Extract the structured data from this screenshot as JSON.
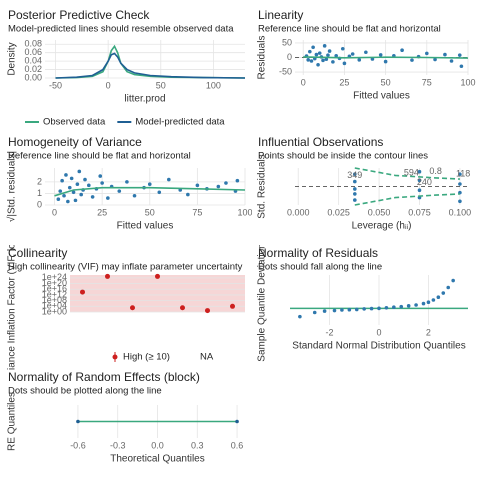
{
  "chart_data": [
    {
      "type": "line",
      "title": "Posterior Predictive Check",
      "subtitle": "Model-predicted lines should resemble observed data",
      "xlabel": "litter.prod",
      "ylabel": "Density",
      "xlim": [
        -60,
        130
      ],
      "ylim": [
        0,
        0.09
      ],
      "xticks": [
        -50,
        0,
        50,
        100
      ],
      "yticks": [
        {
          "value": 0,
          "label": "0.00"
        },
        {
          "value": 0.02,
          "label": "0.02"
        },
        {
          "value": 0.04,
          "label": "0.04"
        },
        {
          "value": 0.06,
          "label": "0.06"
        },
        {
          "value": 0.08,
          "label": "0.08"
        }
      ],
      "legend": "bottom",
      "series": [
        {
          "name": "Observed data",
          "color": "#3aa87f",
          "x": [
            -50,
            -30,
            -15,
            -5,
            0,
            3,
            6,
            9,
            12,
            18,
            25,
            40,
            60,
            90,
            130
          ],
          "values": [
            0,
            0.001,
            0.004,
            0.015,
            0.04,
            0.065,
            0.075,
            0.06,
            0.035,
            0.015,
            0.008,
            0.004,
            0.002,
            0.001,
            0
          ]
        },
        {
          "name": "Model-predicted data",
          "color": "#1f5f93",
          "x": [
            -50,
            -30,
            -15,
            -5,
            0,
            3,
            6,
            9,
            12,
            18,
            25,
            40,
            60,
            90,
            130
          ],
          "values": [
            0,
            0.002,
            0.006,
            0.02,
            0.04,
            0.055,
            0.058,
            0.05,
            0.035,
            0.02,
            0.012,
            0.006,
            0.003,
            0.001,
            0
          ]
        }
      ]
    },
    {
      "type": "scatter",
      "title": "Linearity",
      "subtitle": "Reference line should be flat and horizontal",
      "xlabel": "Fitted values",
      "ylabel": "Residuals",
      "xlim": [
        -5,
        100
      ],
      "ylim": [
        -60,
        60
      ],
      "xticks": [
        0,
        25,
        50,
        75,
        100
      ],
      "yticks": [
        -50,
        0,
        50
      ],
      "reference_line": 0,
      "series": [
        {
          "color": "#2f78ad",
          "x": [
            2,
            3,
            4,
            5,
            6,
            7,
            8,
            9,
            10,
            11,
            12,
            13,
            14,
            15,
            16,
            18,
            20,
            22,
            24,
            25,
            28,
            30,
            34,
            38,
            42,
            47,
            50,
            55,
            60,
            66,
            70,
            75,
            80,
            86,
            90,
            95,
            96
          ],
          "values": [
            5,
            -8,
            20,
            -12,
            35,
            -4,
            10,
            -25,
            15,
            2,
            -10,
            40,
            -6,
            8,
            22,
            -15,
            6,
            -3,
            30,
            -20,
            4,
            12,
            -8,
            18,
            -5,
            9,
            -14,
            6,
            25,
            -9,
            3,
            14,
            -7,
            10,
            -12,
            8,
            -30
          ]
        },
        {
          "color": "#3aa87f",
          "line": true,
          "x": [
            0,
            25,
            50,
            75,
            100
          ],
          "values": [
            2,
            -1,
            1,
            0,
            -2
          ]
        }
      ]
    },
    {
      "type": "scatter",
      "title": "Homogeneity of Variance",
      "subtitle": "Reference line should be flat and horizontal",
      "xlabel": "Fitted values",
      "ylabel": "√|Std. residuals|",
      "xlim": [
        -5,
        100
      ],
      "ylim": [
        0,
        3.2
      ],
      "xticks": [
        0,
        25,
        50,
        75,
        100
      ],
      "yticks": [
        0,
        1,
        2
      ],
      "series": [
        {
          "color": "#2f78ad",
          "x": [
            2,
            3,
            4,
            5,
            6,
            7,
            8,
            9,
            10,
            11,
            12,
            13,
            14,
            15,
            16,
            18,
            20,
            22,
            24,
            25,
            28,
            30,
            34,
            38,
            42,
            47,
            50,
            55,
            60,
            66,
            70,
            75,
            80,
            86,
            90,
            95,
            96
          ],
          "values": [
            0.5,
            1.2,
            2.1,
            0.8,
            2.6,
            0.3,
            1.5,
            2.3,
            1.1,
            0.4,
            1.8,
            2.9,
            0.9,
            1.3,
            2.2,
            1.7,
            0.7,
            1.4,
            2.5,
            1.9,
            0.6,
            1.6,
            1.2,
            2.0,
            0.8,
            1.5,
            1.8,
            1.1,
            2.2,
            1.3,
            0.9,
            1.7,
            1.4,
            1.6,
            1.9,
            1.2,
            2.1
          ]
        },
        {
          "color": "#3aa87f",
          "line": true,
          "x": [
            0,
            10,
            25,
            50,
            75,
            100
          ],
          "values": [
            0.8,
            1.3,
            1.5,
            1.5,
            1.4,
            1.3
          ]
        }
      ]
    },
    {
      "type": "scatter",
      "title": "Influential Observations",
      "subtitle": "Points should be inside the contour lines",
      "xlabel": "Leverage (hᵢᵢ)",
      "ylabel": "Std. Residuals",
      "xlim": [
        -0.002,
        0.105
      ],
      "ylim": [
        -1.5,
        1.5
      ],
      "xticks": [
        {
          "value": 0,
          "label": "0.000"
        },
        {
          "value": 0.025,
          "label": "0.025"
        },
        {
          "value": 0.05,
          "label": "0.050"
        },
        {
          "value": 0.075,
          "label": "0.075"
        },
        {
          "value": 0.1,
          "label": "0.100"
        }
      ],
      "reference_line": 0,
      "series": [
        {
          "color": "#2f78ad",
          "x": [
            0.035,
            0.035,
            0.035,
            0.035,
            0.035,
            0.075,
            0.075,
            0.075,
            0.075,
            0.1,
            0.1,
            0.1,
            0.1
          ],
          "values": [
            1.0,
            0.4,
            -0.2,
            -0.6,
            -1.1,
            1.2,
            0.5,
            -0.3,
            -0.9,
            1.0,
            0.2,
            -0.5,
            -1.2
          ]
        },
        {
          "color": "#3aa87f",
          "line": true,
          "dash": true,
          "x": [
            0.035,
            0.06,
            0.085,
            0.1
          ],
          "values": [
            1.5,
            0.9,
            0.7,
            0.6
          ]
        },
        {
          "color": "#3aa87f",
          "line": true,
          "dash": true,
          "x": [
            0.035,
            0.06,
            0.085,
            0.1
          ],
          "values": [
            -1.5,
            -0.9,
            -0.7,
            -0.6
          ]
        }
      ],
      "annotations": [
        {
          "x": 0.035,
          "y": 0.9,
          "text": "349"
        },
        {
          "x": 0.07,
          "y": 1.1,
          "text": "594"
        },
        {
          "x": 0.085,
          "y": 1.2,
          "text": "0.8"
        },
        {
          "x": 0.078,
          "y": 0.3,
          "text": "240"
        },
        {
          "x": 0.102,
          "y": 1.0,
          "text": "118"
        }
      ]
    },
    {
      "type": "dot",
      "title": "Collinearity",
      "subtitle": "High collinearity (VIF) may inflate parameter uncertainty",
      "ylabel": "Variance Inflation Factor (VIF, log-scaled)",
      "ylog": true,
      "ylim": [
        1,
        1e+26
      ],
      "yticks": [
        {
          "value": 1,
          "label": "1e+00"
        },
        {
          "value": 10000.0,
          "label": "1e+04"
        },
        {
          "value": 100000000.0,
          "label": "1e+08"
        },
        {
          "value": 1000000000000.0,
          "label": "1e+12"
        },
        {
          "value": 1e+16,
          "label": "1e+16"
        },
        {
          "value": 1e+20,
          "label": "1e+20"
        },
        {
          "value": 1e+24,
          "label": "1e+24"
        }
      ],
      "categories": [
        null,
        null,
        null,
        null,
        null,
        null,
        null
      ],
      "values": [
        100000000000000.0,
        1e+25,
        1000.0,
        1e+25,
        1000.0,
        10.0,
        10000.0
      ],
      "color": "#cd201f",
      "legend_entries": [
        "High (≥ 10)",
        "NA"
      ]
    },
    {
      "type": "scatter",
      "title": "Normality of Residuals",
      "subtitle": "Dots should fall along the line",
      "xlabel": "Standard Normal Distribution Quantiles",
      "ylabel": "Sample Quantile Deviations",
      "xlim": [
        -3.6,
        3.6
      ],
      "ylim": [
        -0.6,
        1.2
      ],
      "xticks": [
        -2,
        0,
        2
      ],
      "reference_line": 0,
      "series": [
        {
          "color": "#2f78ad",
          "x": [
            -3.2,
            -2.6,
            -2.2,
            -1.8,
            -1.5,
            -1.2,
            -0.9,
            -0.6,
            -0.3,
            0,
            0.3,
            0.6,
            0.9,
            1.2,
            1.5,
            1.8,
            2.0,
            2.2,
            2.4,
            2.6,
            2.8,
            3.0
          ],
          "values": [
            -0.3,
            -0.15,
            -0.1,
            -0.08,
            -0.06,
            -0.05,
            -0.04,
            -0.02,
            -0.01,
            0,
            0.02,
            0.04,
            0.06,
            0.09,
            0.12,
            0.17,
            0.22,
            0.3,
            0.4,
            0.55,
            0.75,
            1.0
          ]
        }
      ]
    },
    {
      "type": "scatter",
      "title": "Normality of Random Effects (block)",
      "subtitle": "Dots should be plotted along the line",
      "xlabel": "Theoretical Quantiles",
      "ylabel": "RE Quantiles",
      "xlim": [
        -0.66,
        0.66
      ],
      "ylim": [
        -1,
        1
      ],
      "xticks": [
        -0.6,
        -0.3,
        {
          "value": 0,
          "label": "0.0"
        },
        0.3,
        0.6
      ],
      "series": [
        {
          "color": "#3aa87f",
          "line": true,
          "x": [
            -0.6,
            0.6
          ],
          "values": [
            0,
            0
          ]
        },
        {
          "color": "#1f5f93",
          "x": [
            -0.6,
            0.6
          ],
          "values": [
            0,
            0
          ]
        }
      ]
    }
  ]
}
